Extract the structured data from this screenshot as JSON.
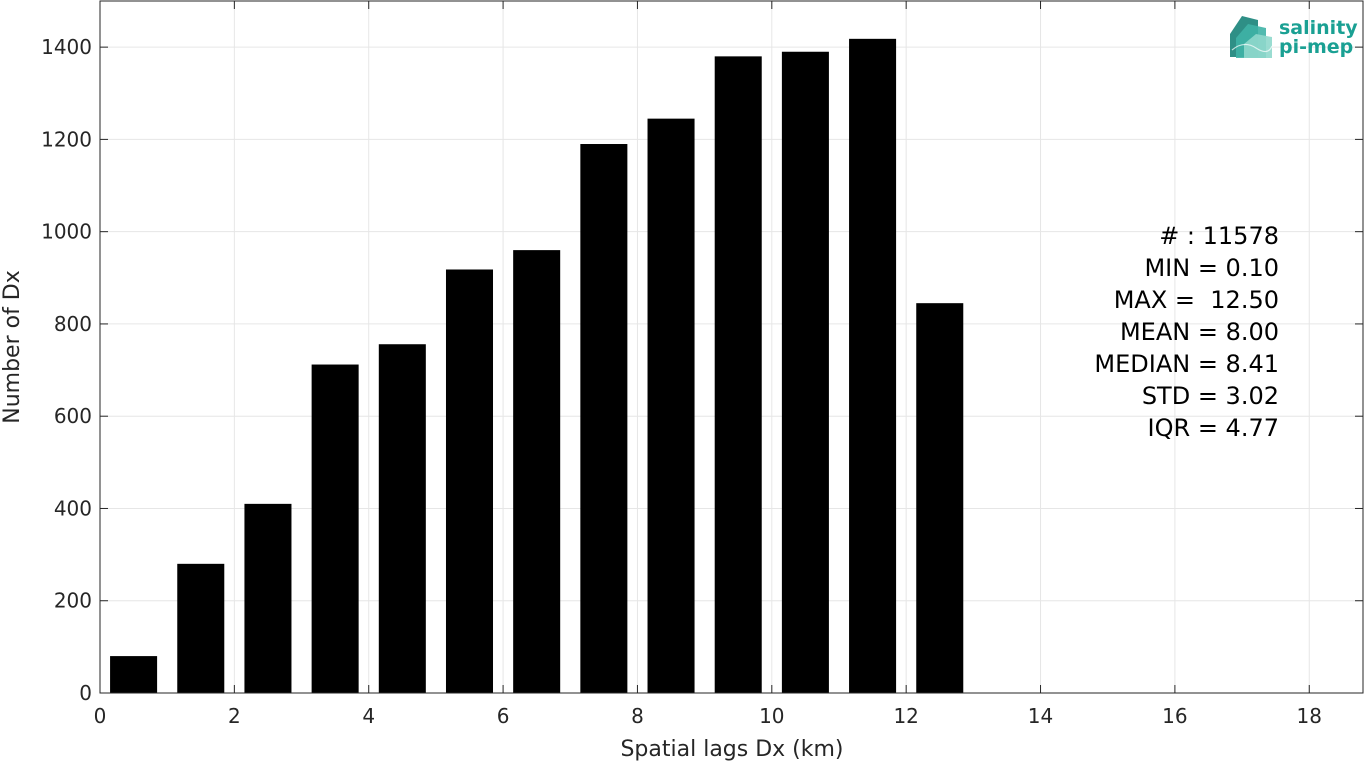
{
  "chart_data": {
    "type": "bar",
    "x": [
      0.5,
      1.5,
      2.5,
      3.5,
      4.5,
      5.5,
      6.5,
      7.5,
      8.5,
      9.5,
      10.5,
      11.5,
      12.5
    ],
    "values": [
      80,
      280,
      410,
      712,
      756,
      918,
      960,
      1190,
      1245,
      1380,
      1390,
      1418,
      845
    ],
    "bar_color": "#000000",
    "xlabel": "Spatial lags Dx (km)",
    "ylabel": "Number of Dx",
    "xlim": [
      0,
      18.8
    ],
    "ylim": [
      0,
      1500
    ],
    "xticks": [
      "0",
      "2",
      "4",
      "6",
      "8",
      "10",
      "12",
      "14",
      "16",
      "18"
    ],
    "yticks": [
      "0",
      "200",
      "400",
      "600",
      "800",
      "1000",
      "1200",
      "1400"
    ],
    "grid": true,
    "stats": [
      "# : 11578",
      "MIN = 0.10",
      "MAX =  12.50",
      "MEAN = 8.00",
      "MEDIAN = 8.41",
      "STD = 3.02",
      "IQR = 4.77"
    ]
  },
  "logo": {
    "line1": "salinity",
    "line2": "pi-mep",
    "color": "#1aa093"
  }
}
